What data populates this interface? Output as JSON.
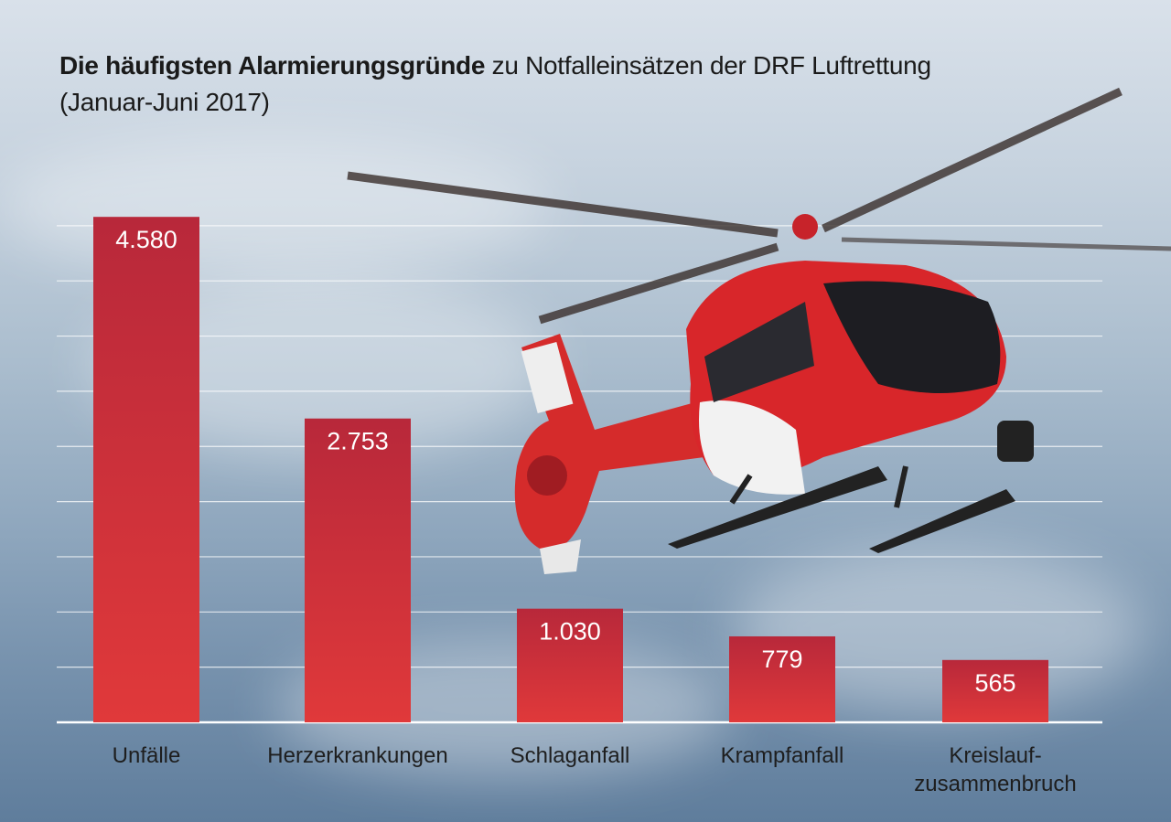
{
  "title_bold": "Die häufigsten Alarmierungsgründe",
  "title_rest": "zu Notfalleinsätzen der DRF Luftrettung",
  "subtitle": "(Januar-Juni 2017)",
  "colors": {
    "bar_top": "#b8283a",
    "bar_bottom": "#e0393a",
    "gridline": "#ffffff",
    "text": "#1e1e1e"
  },
  "chart_data": {
    "type": "bar",
    "title": "Die häufigsten Alarmierungsgründe zu Notfalleinsätzen der DRF Luftrettung (Januar-Juni 2017)",
    "categories": [
      "Unfälle",
      "Herzerkrankungen",
      "Schlaganfall",
      "Krampfanfall",
      "Kreislauf-\nzusammenbruch"
    ],
    "values": [
      4580,
      2753,
      1030,
      779,
      565
    ],
    "value_labels": [
      "4.580",
      "2.753",
      "1.030",
      "779",
      "565"
    ],
    "ylim": [
      0,
      4500
    ],
    "grid": true,
    "y_axis_labels": false,
    "background": "helicopter photo against cloudy sky"
  }
}
